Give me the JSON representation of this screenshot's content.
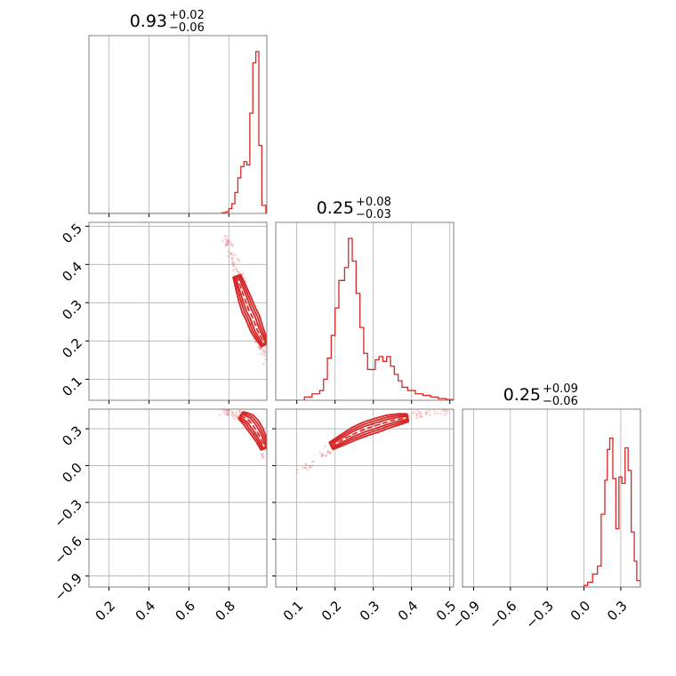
{
  "chart_data": {
    "type": "corner",
    "color": "#d62728",
    "parameters": [
      {
        "title_value": "0.93",
        "title_plus": "+0.02",
        "title_minus": "−0.06",
        "range": [
          0.1,
          0.99
        ],
        "ticks": [
          0.2,
          0.4,
          0.6,
          0.8
        ],
        "tick_labels": [
          "0.2",
          "0.4",
          "0.6",
          "0.8"
        ]
      },
      {
        "title_value": "0.25",
        "title_plus": "+0.08",
        "title_minus": "−0.03",
        "range": [
          0.045,
          0.51
        ],
        "ticks": [
          0.1,
          0.2,
          0.3,
          0.4,
          0.5
        ],
        "tick_labels": [
          "0.1",
          "0.2",
          "0.3",
          "0.4",
          "0.5"
        ]
      },
      {
        "title_value": "0.25",
        "title_plus": "+0.09",
        "title_minus": "−0.06",
        "range": [
          -0.99,
          0.46
        ],
        "ticks": [
          -0.9,
          -0.6,
          -0.3,
          0.0,
          0.3
        ],
        "tick_labels": [
          "−0.9",
          "−0.6",
          "−0.3",
          "0.0",
          "0.3"
        ]
      }
    ],
    "histograms": [
      {
        "param": 0,
        "bins": [
          [
            0.765,
            0.005
          ],
          [
            0.785,
            0.01
          ],
          [
            0.8,
            0.03
          ],
          [
            0.815,
            0.06
          ],
          [
            0.83,
            0.13
          ],
          [
            0.845,
            0.22
          ],
          [
            0.86,
            0.29
          ],
          [
            0.875,
            0.32
          ],
          [
            0.89,
            0.3
          ],
          [
            0.905,
            0.62
          ],
          [
            0.92,
            0.93
          ],
          [
            0.935,
            1.0
          ],
          [
            0.95,
            0.42
          ],
          [
            0.965,
            0.05
          ]
        ]
      },
      {
        "param": 1,
        "bins": [
          [
            0.045,
            0.0
          ],
          [
            0.12,
            0.02
          ],
          [
            0.14,
            0.04
          ],
          [
            0.16,
            0.06
          ],
          [
            0.17,
            0.13
          ],
          [
            0.18,
            0.26
          ],
          [
            0.19,
            0.4
          ],
          [
            0.2,
            0.57
          ],
          [
            0.21,
            0.74
          ],
          [
            0.225,
            0.82
          ],
          [
            0.235,
            1.0
          ],
          [
            0.245,
            0.86
          ],
          [
            0.255,
            0.66
          ],
          [
            0.265,
            0.45
          ],
          [
            0.275,
            0.29
          ],
          [
            0.285,
            0.19
          ],
          [
            0.295,
            0.19
          ],
          [
            0.305,
            0.25
          ],
          [
            0.315,
            0.27
          ],
          [
            0.325,
            0.24
          ],
          [
            0.335,
            0.27
          ],
          [
            0.345,
            0.21
          ],
          [
            0.355,
            0.16
          ],
          [
            0.365,
            0.12
          ],
          [
            0.375,
            0.08
          ],
          [
            0.39,
            0.06
          ],
          [
            0.41,
            0.04
          ],
          [
            0.43,
            0.03
          ],
          [
            0.45,
            0.02
          ],
          [
            0.47,
            0.01
          ],
          [
            0.49,
            0.005
          ]
        ]
      },
      {
        "param": 2,
        "bins": [
          [
            0.0,
            0.01
          ],
          [
            0.03,
            0.03
          ],
          [
            0.07,
            0.08
          ],
          [
            0.11,
            0.13
          ],
          [
            0.14,
            0.45
          ],
          [
            0.17,
            0.66
          ],
          [
            0.19,
            0.85
          ],
          [
            0.21,
            0.92
          ],
          [
            0.235,
            0.67
          ],
          [
            0.26,
            0.36
          ],
          [
            0.285,
            0.68
          ],
          [
            0.31,
            0.64
          ],
          [
            0.335,
            0.86
          ],
          [
            0.36,
            0.72
          ],
          [
            0.385,
            0.34
          ],
          [
            0.41,
            0.16
          ],
          [
            0.43,
            0.04
          ]
        ]
      }
    ],
    "pairs": [
      {
        "x_param": 0,
        "y_param": 1,
        "ridge": [
          [
            0.78,
            0.48
          ],
          [
            0.8,
            0.45
          ],
          [
            0.83,
            0.41
          ],
          [
            0.85,
            0.37
          ],
          [
            0.87,
            0.33
          ],
          [
            0.89,
            0.29
          ],
          [
            0.91,
            0.26
          ],
          [
            0.93,
            0.23
          ],
          [
            0.95,
            0.2
          ],
          [
            0.97,
            0.18
          ],
          [
            0.99,
            0.15
          ]
        ],
        "core": [
          [
            0.84,
            0.37
          ],
          [
            0.86,
            0.34
          ],
          [
            0.88,
            0.31
          ],
          [
            0.9,
            0.28
          ],
          [
            0.92,
            0.26
          ],
          [
            0.94,
            0.23
          ],
          [
            0.96,
            0.21
          ],
          [
            0.98,
            0.19
          ]
        ]
      },
      {
        "x_param": 0,
        "y_param": 2,
        "ridge": [
          [
            0.77,
            0.45
          ],
          [
            0.8,
            0.44
          ],
          [
            0.83,
            0.42
          ],
          [
            0.86,
            0.4
          ],
          [
            0.89,
            0.36
          ],
          [
            0.92,
            0.31
          ],
          [
            0.95,
            0.25
          ],
          [
            0.97,
            0.18
          ],
          [
            0.99,
            0.06
          ]
        ],
        "core": [
          [
            0.86,
            0.41
          ],
          [
            0.88,
            0.39
          ],
          [
            0.9,
            0.37
          ],
          [
            0.92,
            0.33
          ],
          [
            0.94,
            0.28
          ],
          [
            0.96,
            0.22
          ],
          [
            0.98,
            0.14
          ]
        ]
      },
      {
        "x_param": 1,
        "y_param": 2,
        "ridge": [
          [
            0.11,
            -0.03
          ],
          [
            0.15,
            0.04
          ],
          [
            0.19,
            0.15
          ],
          [
            0.22,
            0.21
          ],
          [
            0.26,
            0.27
          ],
          [
            0.3,
            0.32
          ],
          [
            0.34,
            0.36
          ],
          [
            0.38,
            0.39
          ],
          [
            0.42,
            0.41
          ],
          [
            0.46,
            0.44
          ],
          [
            0.49,
            0.45
          ]
        ],
        "core": [
          [
            0.19,
            0.16
          ],
          [
            0.22,
            0.21
          ],
          [
            0.25,
            0.26
          ],
          [
            0.28,
            0.3
          ],
          [
            0.31,
            0.33
          ],
          [
            0.34,
            0.36
          ],
          [
            0.37,
            0.38
          ],
          [
            0.39,
            0.39
          ]
        ]
      }
    ],
    "grid": true
  }
}
